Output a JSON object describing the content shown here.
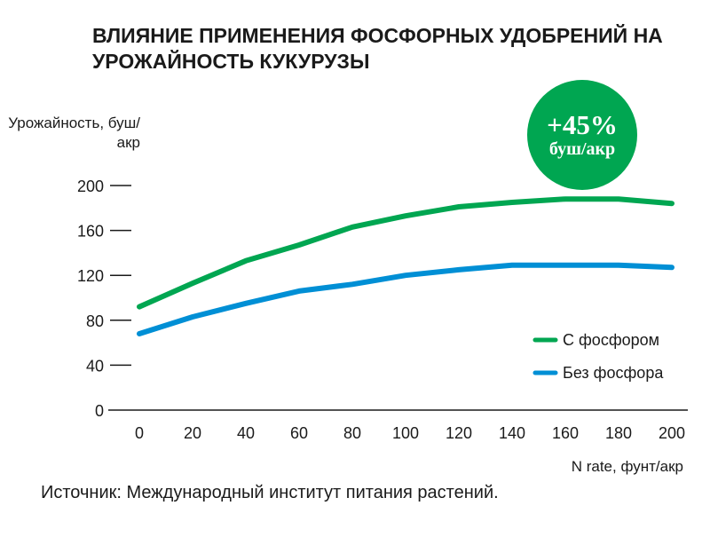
{
  "chart_data": {
    "type": "line",
    "title": "ВЛИЯНИЕ ПРИМЕНЕНИЯ ФОСФОРНЫХ УДОБРЕНИЙ НА УРОЖАЙНОСТЬ КУКУРУЗЫ",
    "ylabel": "Урожайность, буш/акр",
    "xlabel": "N rate, фунт/акр",
    "x": [
      0,
      20,
      40,
      60,
      80,
      100,
      120,
      140,
      160,
      180,
      200
    ],
    "xticks": [
      "0",
      "20",
      "40",
      "60",
      "80",
      "100",
      "120",
      "140",
      "160",
      "180",
      "200"
    ],
    "yticks": [
      "0",
      "40",
      "80",
      "120",
      "160",
      "200"
    ],
    "ylim": [
      0,
      200
    ],
    "xlim": [
      0,
      200
    ],
    "grid": false,
    "legend_position": "bottom-right",
    "series": [
      {
        "name": "С фосфором",
        "color": "#00a651",
        "values": [
          92,
          113,
          133,
          147,
          163,
          173,
          181,
          185,
          188,
          188,
          184
        ]
      },
      {
        "name": "Без фосфора",
        "color": "#008fd5",
        "values": [
          68,
          83,
          95,
          106,
          112,
          120,
          125,
          129,
          129,
          129,
          127
        ]
      }
    ]
  },
  "badge": {
    "value": "+45%",
    "unit": "буш/акр",
    "color": "#00a651"
  },
  "source": "Источник: Международный институт питания растений."
}
